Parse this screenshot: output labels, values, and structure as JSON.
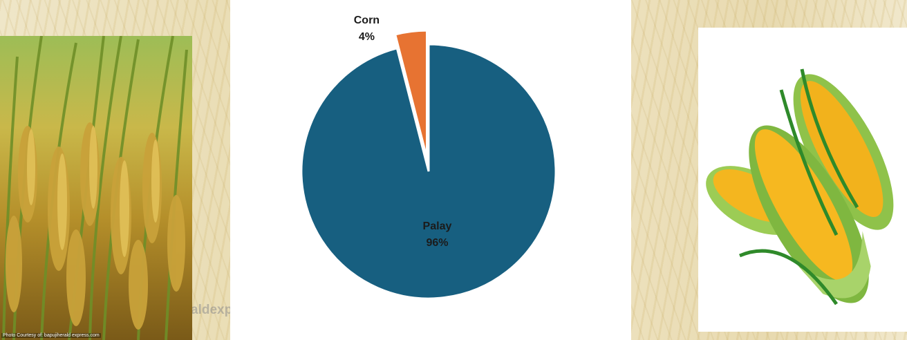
{
  "chart_data": {
    "type": "pie",
    "title": "",
    "slices": [
      {
        "label": "Palay",
        "value": 96,
        "value_label": "96%",
        "color": "#175f80"
      },
      {
        "label": "Corn",
        "value": 4,
        "value_label": "4%",
        "color": "#e77332"
      }
    ],
    "exploded": "Corn"
  },
  "left_image": {
    "alt": "rice-field-photo",
    "credit": "Photo Courtesy of: bapujiherald express.com"
  },
  "right_image": {
    "alt": "corn-cobs-photo"
  },
  "watermark": "aldexp"
}
